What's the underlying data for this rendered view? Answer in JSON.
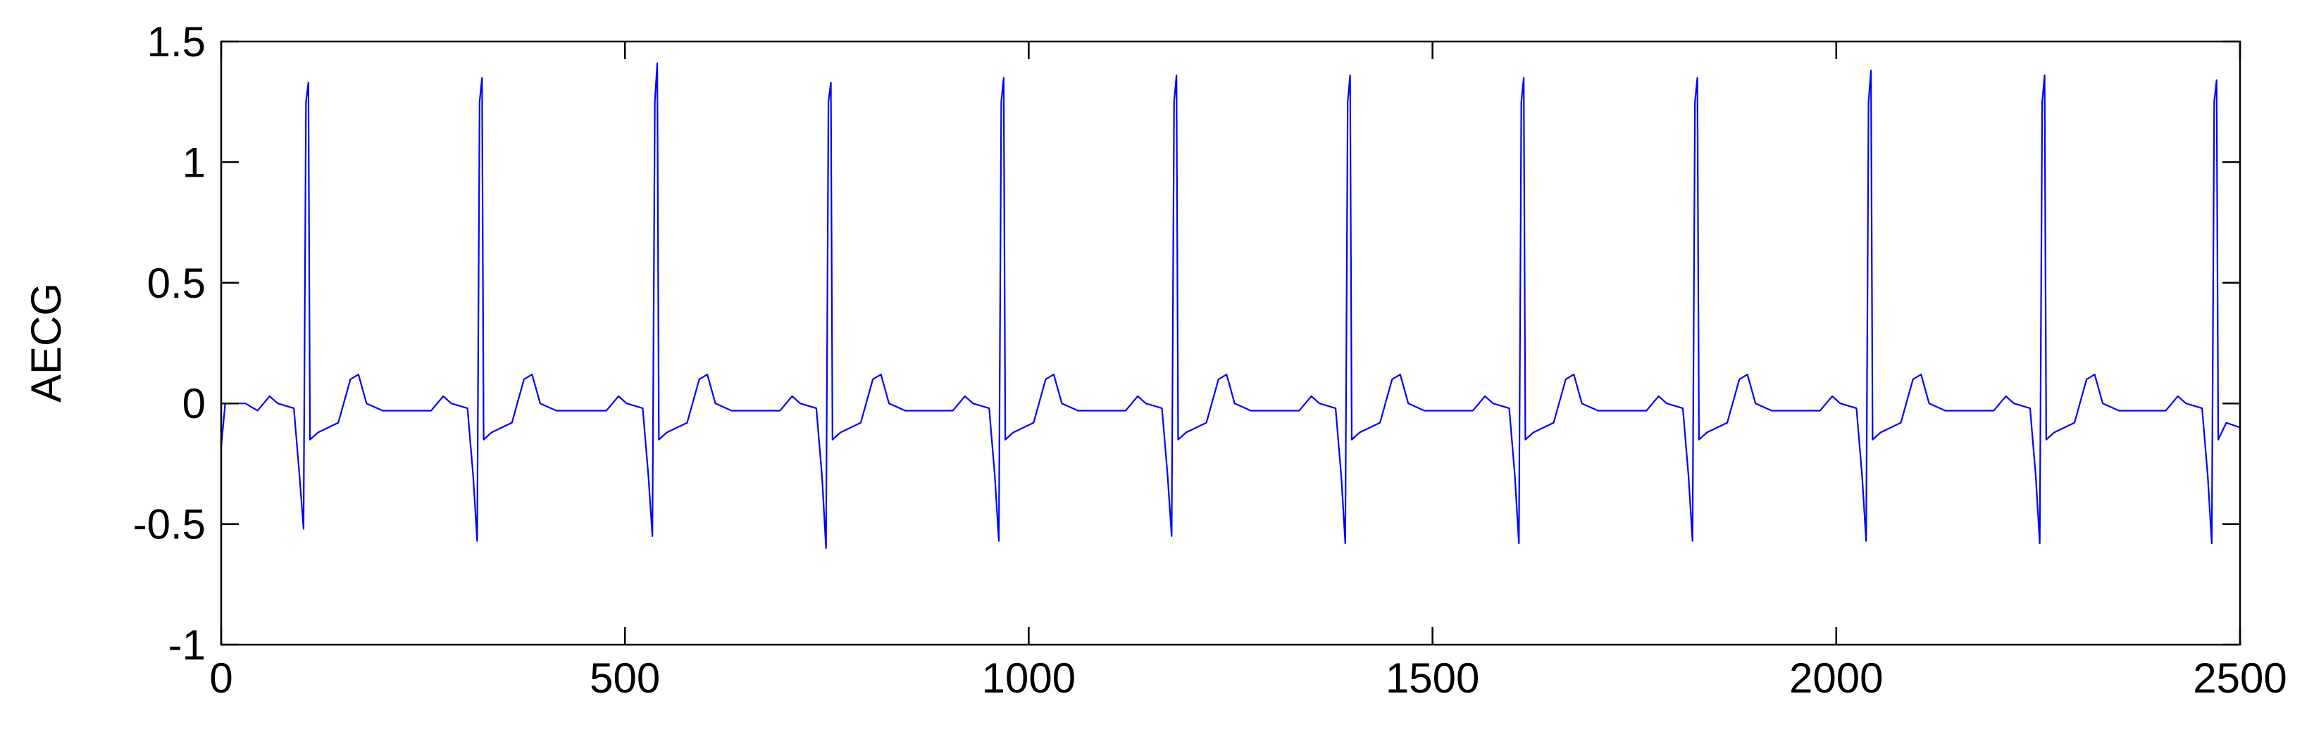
{
  "chart_data": {
    "type": "line",
    "ylabel": "AECG",
    "xlim": [
      0,
      2500
    ],
    "ylim": [
      -1,
      1.5
    ],
    "xticks": [
      0,
      500,
      1000,
      1500,
      2000,
      2500
    ],
    "yticks": [
      -1,
      -0.5,
      0,
      0.5,
      1,
      1.5
    ],
    "grid": false,
    "series": [
      {
        "color": "#0000ff",
        "x": [
          0,
          5,
          30,
          45,
          60,
          70,
          90,
          97,
          102,
          105,
          108,
          110,
          120,
          145,
          160,
          170,
          180,
          200,
          245,
          260,
          275,
          285,
          305,
          312,
          317,
          320,
          323,
          325,
          335,
          360,
          375,
          385,
          395,
          415,
          460,
          477,
          492,
          502,
          522,
          529,
          534,
          537,
          540,
          542,
          552,
          577,
          592,
          602,
          612,
          632,
          677,
          692,
          707,
          717,
          737,
          744,
          749,
          752,
          755,
          757,
          767,
          792,
          807,
          817,
          827,
          847,
          892,
          906,
          921,
          931,
          951,
          958,
          963,
          966,
          969,
          971,
          981,
          1006,
          1021,
          1031,
          1041,
          1061,
          1106,
          1120,
          1135,
          1145,
          1165,
          1172,
          1177,
          1180,
          1183,
          1185,
          1195,
          1220,
          1235,
          1245,
          1255,
          1275,
          1320,
          1335,
          1350,
          1360,
          1380,
          1387,
          1392,
          1395,
          1398,
          1400,
          1410,
          1435,
          1450,
          1460,
          1470,
          1490,
          1535,
          1550,
          1565,
          1575,
          1595,
          1602,
          1607,
          1610,
          1613,
          1615,
          1625,
          1650,
          1665,
          1675,
          1685,
          1705,
          1750,
          1765,
          1780,
          1790,
          1810,
          1817,
          1822,
          1825,
          1828,
          1830,
          1840,
          1865,
          1880,
          1890,
          1900,
          1920,
          1965,
          1980,
          1995,
          2005,
          2025,
          2032,
          2037,
          2040,
          2043,
          2045,
          2055,
          2080,
          2095,
          2105,
          2115,
          2135,
          2180,
          2195,
          2210,
          2220,
          2240,
          2247,
          2252,
          2255,
          2258,
          2260,
          2270,
          2295,
          2310,
          2320,
          2330,
          2350,
          2395,
          2408,
          2423,
          2433,
          2453,
          2460,
          2465,
          2468,
          2471,
          2473,
          2483,
          2500
        ],
        "values": [
          -0.18,
          0.0,
          0.0,
          -0.03,
          0.03,
          0.0,
          -0.02,
          -0.3,
          -0.52,
          1.25,
          1.33,
          -0.15,
          -0.12,
          -0.08,
          0.1,
          0.12,
          0.0,
          -0.03,
          -0.03,
          -0.03,
          0.03,
          0.0,
          -0.02,
          -0.3,
          -0.57,
          1.25,
          1.35,
          -0.15,
          -0.12,
          -0.08,
          0.1,
          0.12,
          0.0,
          -0.03,
          -0.03,
          -0.03,
          0.03,
          0.0,
          -0.02,
          -0.3,
          -0.55,
          1.25,
          1.41,
          -0.15,
          -0.12,
          -0.08,
          0.1,
          0.12,
          0.0,
          -0.03,
          -0.03,
          -0.03,
          0.03,
          0.0,
          -0.02,
          -0.3,
          -0.6,
          1.25,
          1.33,
          -0.15,
          -0.12,
          -0.08,
          0.1,
          0.12,
          0.0,
          -0.03,
          -0.03,
          -0.03,
          0.03,
          0.0,
          -0.02,
          -0.3,
          -0.57,
          1.25,
          1.35,
          -0.15,
          -0.12,
          -0.08,
          0.1,
          0.12,
          0.0,
          -0.03,
          -0.03,
          -0.03,
          0.03,
          0.0,
          -0.02,
          -0.3,
          -0.55,
          1.25,
          1.36,
          -0.15,
          -0.12,
          -0.08,
          0.1,
          0.12,
          0.0,
          -0.03,
          -0.03,
          -0.03,
          0.03,
          0.0,
          -0.02,
          -0.3,
          -0.58,
          1.25,
          1.36,
          -0.15,
          -0.12,
          -0.08,
          0.1,
          0.12,
          0.0,
          -0.03,
          -0.03,
          -0.03,
          0.03,
          0.0,
          -0.02,
          -0.3,
          -0.58,
          1.25,
          1.35,
          -0.15,
          -0.12,
          -0.08,
          0.1,
          0.12,
          0.0,
          -0.03,
          -0.03,
          -0.03,
          0.03,
          0.0,
          -0.02,
          -0.3,
          -0.57,
          1.25,
          1.35,
          -0.15,
          -0.12,
          -0.08,
          0.1,
          0.12,
          0.0,
          -0.03,
          -0.03,
          -0.03,
          0.03,
          0.0,
          -0.02,
          -0.3,
          -0.57,
          1.25,
          1.38,
          -0.15,
          -0.12,
          -0.08,
          0.1,
          0.12,
          0.0,
          -0.03,
          -0.03,
          -0.03,
          0.03,
          0.0,
          -0.02,
          -0.3,
          -0.58,
          1.25,
          1.36,
          -0.15,
          -0.12,
          -0.08,
          0.1,
          0.12,
          0.0,
          -0.03,
          -0.03,
          -0.03,
          0.03,
          0.0,
          -0.02,
          -0.3,
          -0.58,
          1.25,
          1.34,
          -0.15,
          -0.08,
          -0.1
        ]
      }
    ]
  }
}
